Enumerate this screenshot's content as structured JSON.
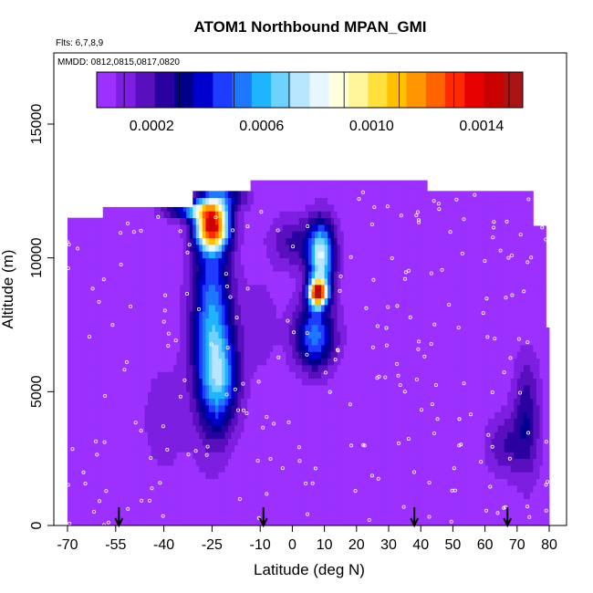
{
  "chart_data": {
    "type": "heatmap",
    "title": "ATOM1 Northbound MPAN_GMI",
    "annotations": {
      "flights": "Flts: 6,7,8,9",
      "dates": "MMDD: 0812,0815,0817,0820"
    },
    "xlabel": "Latitude (deg N)",
    "ylabel": "Altitude (m)",
    "xlim": [
      -70,
      80
    ],
    "ylim": [
      0,
      17500
    ],
    "x_ticks": [
      -70,
      -55,
      -40,
      -25,
      -10,
      0,
      10,
      20,
      30,
      40,
      50,
      60,
      70,
      80
    ],
    "x_tick_labels": [
      "-70",
      "-55",
      "-40",
      "-25",
      "-10",
      "0",
      "10",
      "20",
      "30",
      "40",
      "50",
      "60",
      "70",
      "80"
    ],
    "y_ticks": [
      0,
      5000,
      10000,
      15000
    ],
    "y_tick_labels": [
      "0",
      "5000",
      "10000",
      "15000"
    ],
    "colorbar": {
      "range": [
        0,
        0.00155
      ],
      "ticks": [
        0.0002,
        0.0006,
        0.001,
        0.0014
      ],
      "tick_labels": [
        "0.0002",
        "0.0006",
        "0.0010",
        "0.0014"
      ],
      "colors": [
        "#9b30ff",
        "#7d1fe0",
        "#5a0fbf",
        "#2a00a0",
        "#00008b",
        "#0000cd",
        "#1e3cff",
        "#1e78ff",
        "#1eb4ff",
        "#6ed2ff",
        "#b8e6ff",
        "#e8f6ff",
        "#ffffe0",
        "#fff59a",
        "#ffe03c",
        "#ffc000",
        "#ff9600",
        "#ff6400",
        "#ff2a00",
        "#e60000",
        "#c80000",
        "#aa1414"
      ]
    },
    "background_value": 2e-05,
    "top_boundary": [
      {
        "lat": -70,
        "alt": 11500
      },
      {
        "lat": -60,
        "alt": 11500
      },
      {
        "lat": -59,
        "alt": 11900
      },
      {
        "lat": -32,
        "alt": 11900
      },
      {
        "lat": -31,
        "alt": 12500
      },
      {
        "lat": -14,
        "alt": 12500
      },
      {
        "lat": -13,
        "alt": 12900
      },
      {
        "lat": 41,
        "alt": 12900
      },
      {
        "lat": 42,
        "alt": 12500
      },
      {
        "lat": 74,
        "alt": 12500
      },
      {
        "lat": 75,
        "alt": 11200
      },
      {
        "lat": 78,
        "alt": 11200
      },
      {
        "lat": 79,
        "alt": 7400
      },
      {
        "lat": 80,
        "alt": 7400
      }
    ],
    "plumes": [
      {
        "lat": -25,
        "alt": 7500,
        "slat": 4.5,
        "salt": 2600,
        "amp": 0.00055
      },
      {
        "lat": -22,
        "alt": 5400,
        "slat": 4,
        "salt": 1200,
        "amp": 0.00035
      },
      {
        "lat": -25,
        "alt": 11200,
        "slat": 3.5,
        "salt": 600,
        "amp": 0.00125
      },
      {
        "lat": -31,
        "alt": 11800,
        "slat": 6,
        "salt": 250,
        "amp": 0.00045
      },
      {
        "lat": -21,
        "alt": 12300,
        "slat": 5,
        "salt": 300,
        "amp": 0.0003
      },
      {
        "lat": 9,
        "alt": 10100,
        "slat": 3,
        "salt": 900,
        "amp": 0.00075
      },
      {
        "lat": 8,
        "alt": 8700,
        "slat": 2,
        "salt": 350,
        "amp": 0.00125
      },
      {
        "lat": 7,
        "alt": 7100,
        "slat": 4.5,
        "salt": 900,
        "amp": 0.0005
      },
      {
        "lat": 0,
        "alt": 10600,
        "slat": 5,
        "salt": 700,
        "amp": 0.0002
      },
      {
        "lat": 73,
        "alt": 4000,
        "slat": 3,
        "salt": 1600,
        "amp": 0.00025
      },
      {
        "lat": 66,
        "alt": 3000,
        "slat": 4,
        "salt": 800,
        "amp": 0.00018
      },
      {
        "lat": -40,
        "alt": 4000,
        "slat": 5,
        "salt": 1500,
        "amp": 0.0001
      },
      {
        "lat": -10,
        "alt": 7500,
        "slat": 4,
        "salt": 1200,
        "amp": 0.0001
      }
    ],
    "flight_markers_lat": [
      -54,
      -9,
      38,
      67
    ],
    "legend": "colorbar-top"
  }
}
